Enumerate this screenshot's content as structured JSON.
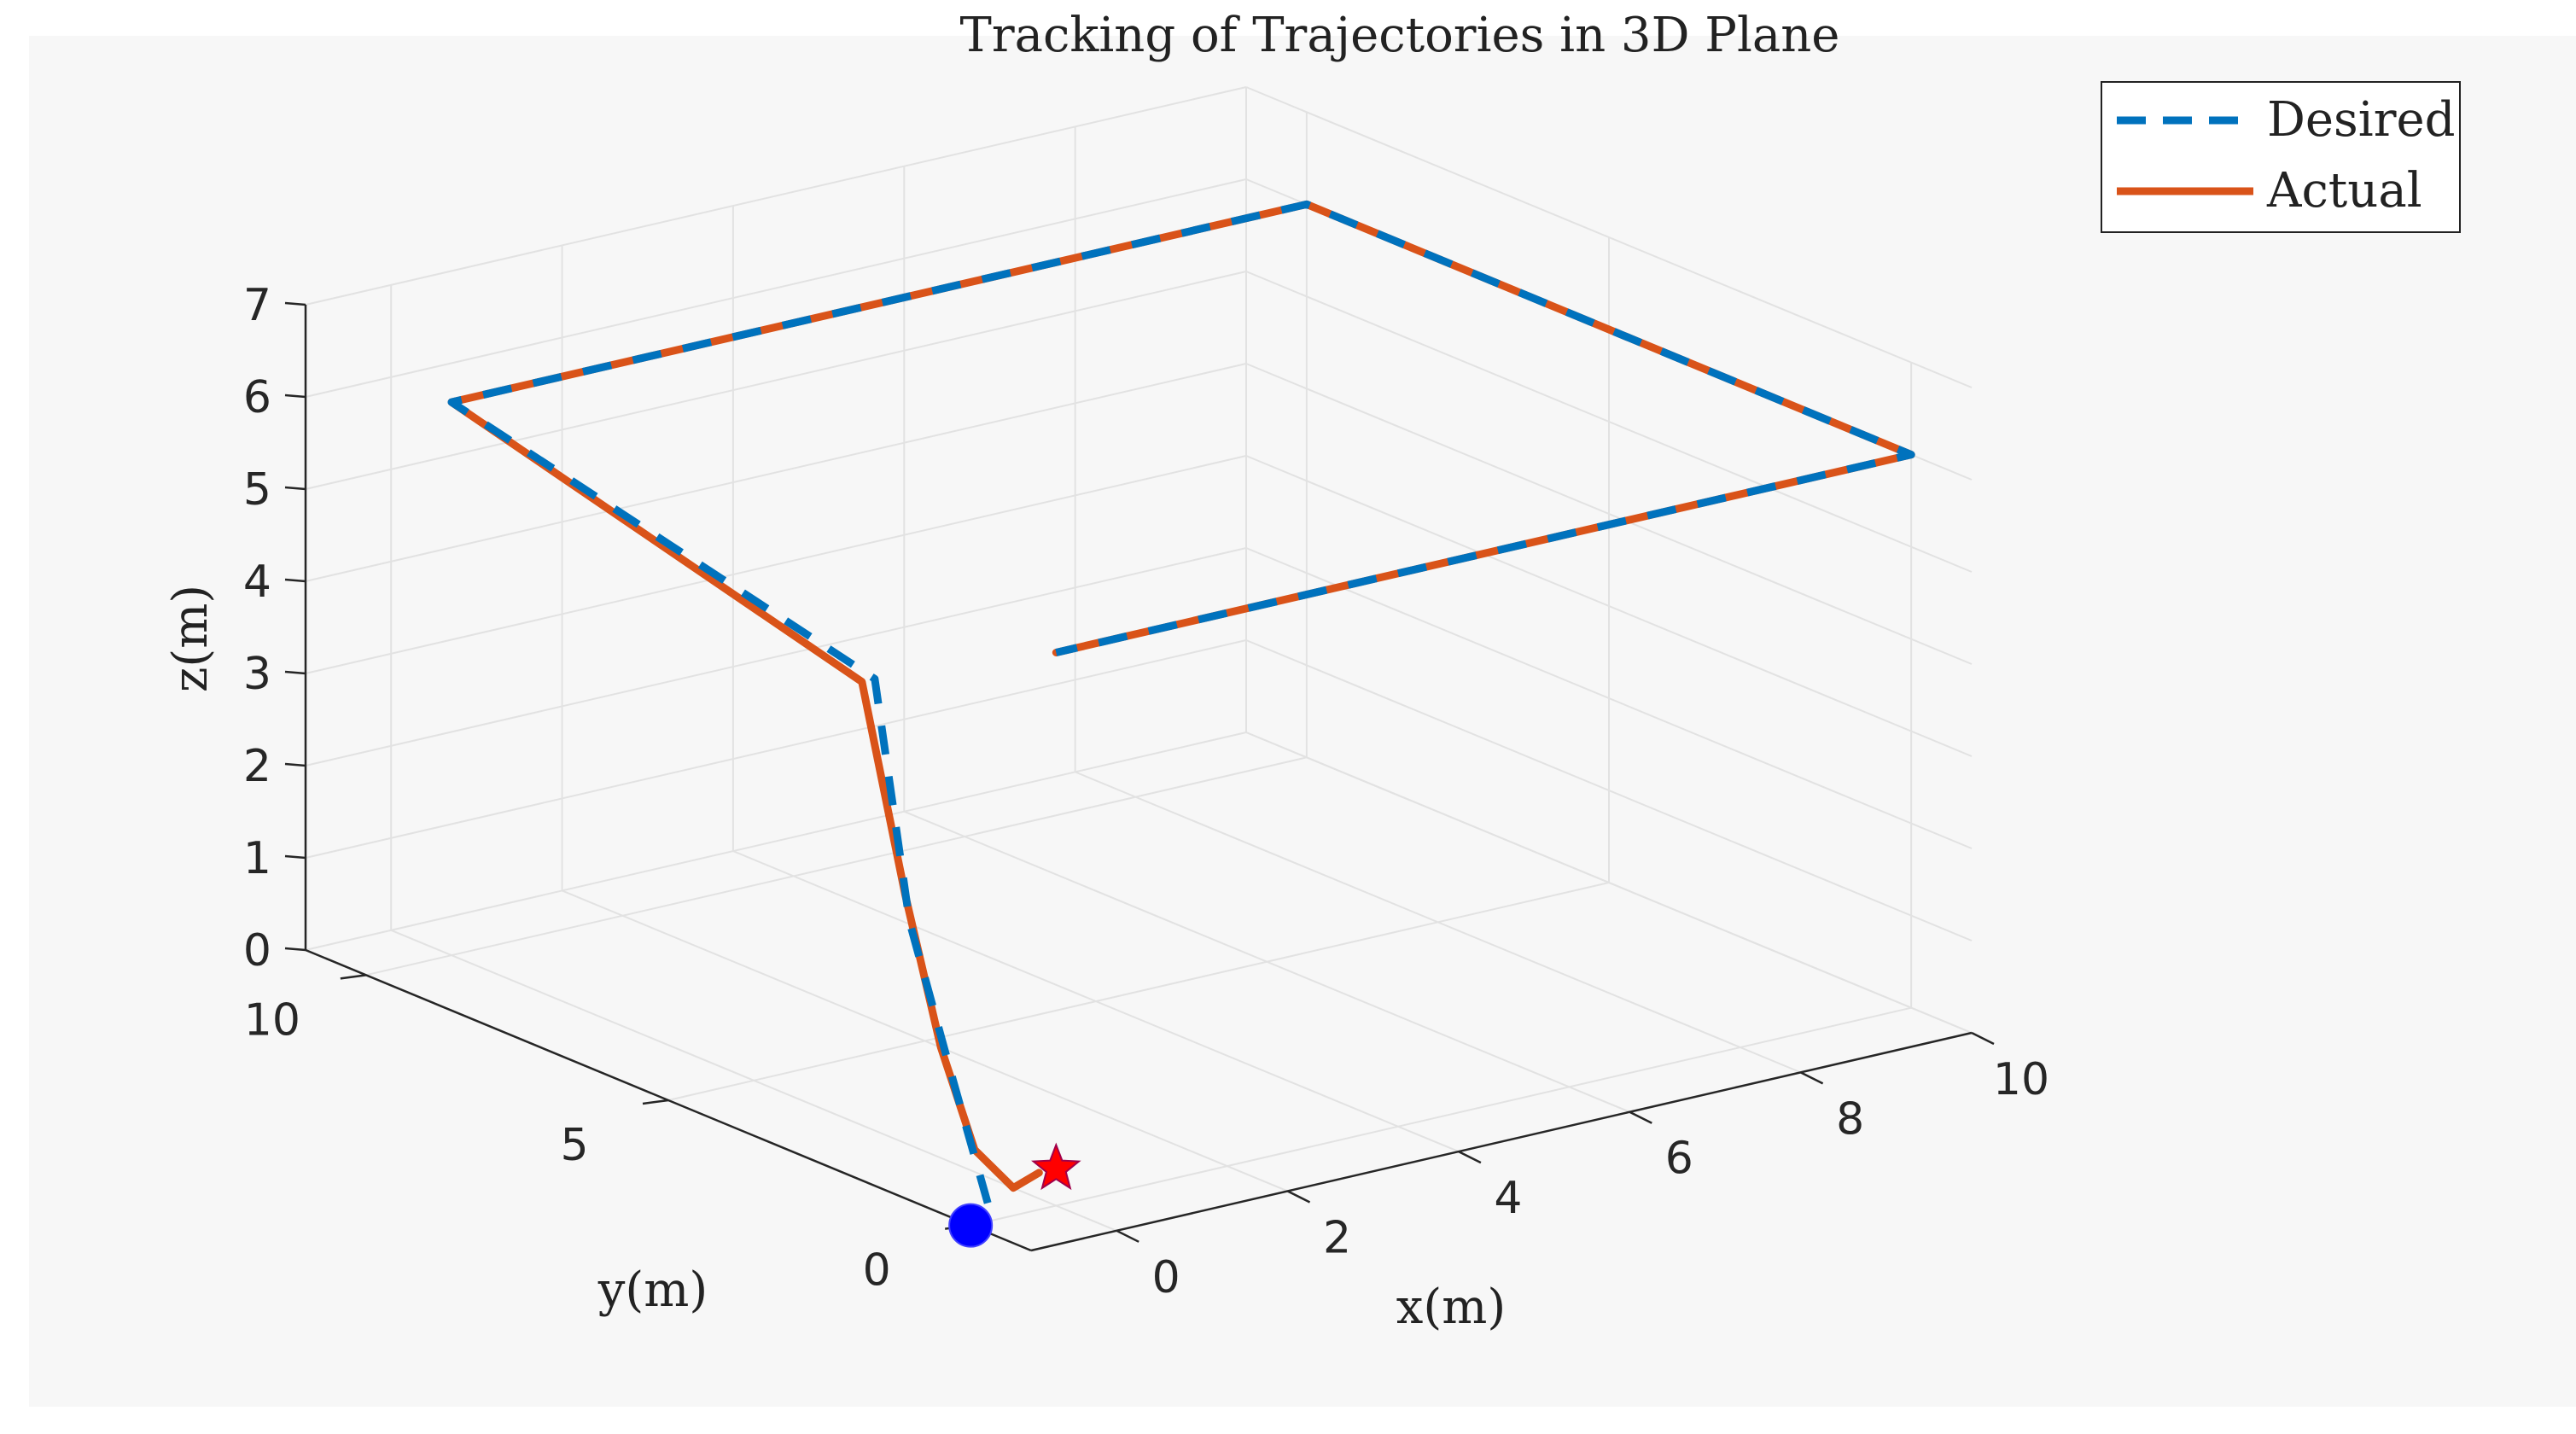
{
  "chart_data": {
    "type": "line",
    "title": "Tracking of Trajectories in 3D Plane",
    "xlabel": "x(m)",
    "ylabel": "y(m)",
    "zlabel": "z(m)",
    "xlim": [
      -1,
      10
    ],
    "ylim": [
      -1,
      11
    ],
    "zlim": [
      0,
      7
    ],
    "x_ticks": [
      "0",
      "2",
      "4",
      "6",
      "8",
      "10"
    ],
    "y_ticks": [
      "0",
      "5",
      "10"
    ],
    "z_ticks": [
      "0",
      "1",
      "2",
      "3",
      "4",
      "5",
      "6",
      "7"
    ],
    "grid": true,
    "legend": {
      "placement": "top-right",
      "entries": [
        "Desired",
        "Actual"
      ]
    },
    "colors": {
      "desired": "#0072BD",
      "actual": "#D95319",
      "start": "#0000FF",
      "end": "#FF0000"
    },
    "series": [
      {
        "name": "Desired",
        "style": "dashed",
        "x": [
          -0.8,
          -0.5,
          -0.3,
          0,
          0,
          10,
          10,
          0,
          0
        ],
        "y": [
          0,
          1,
          2,
          3,
          10,
          10,
          0,
          0,
          0
        ],
        "z": [
          0.2,
          1.2,
          2.6,
          4.9,
          6,
          6,
          6,
          6,
          6
        ]
      },
      {
        "name": "Actual",
        "style": "solid",
        "x": [
          -0.2,
          -0.5,
          -0.6,
          -0.5,
          -0.35,
          -0.15,
          0,
          0,
          10,
          10,
          0,
          0
        ],
        "y": [
          0,
          0,
          0.5,
          1.2,
          2,
          3,
          10,
          10,
          10,
          0,
          0,
          0
        ],
        "z": [
          0.4,
          0.3,
          0.6,
          1.5,
          2.9,
          4.9,
          6,
          6,
          6,
          6,
          6,
          6
        ]
      }
    ],
    "markers": [
      {
        "label": "start",
        "shape": "circle",
        "x": -1,
        "y": 0,
        "z": 0
      },
      {
        "label": "end",
        "shape": "star",
        "x": 0,
        "y": 0,
        "z": 0.4
      }
    ]
  }
}
